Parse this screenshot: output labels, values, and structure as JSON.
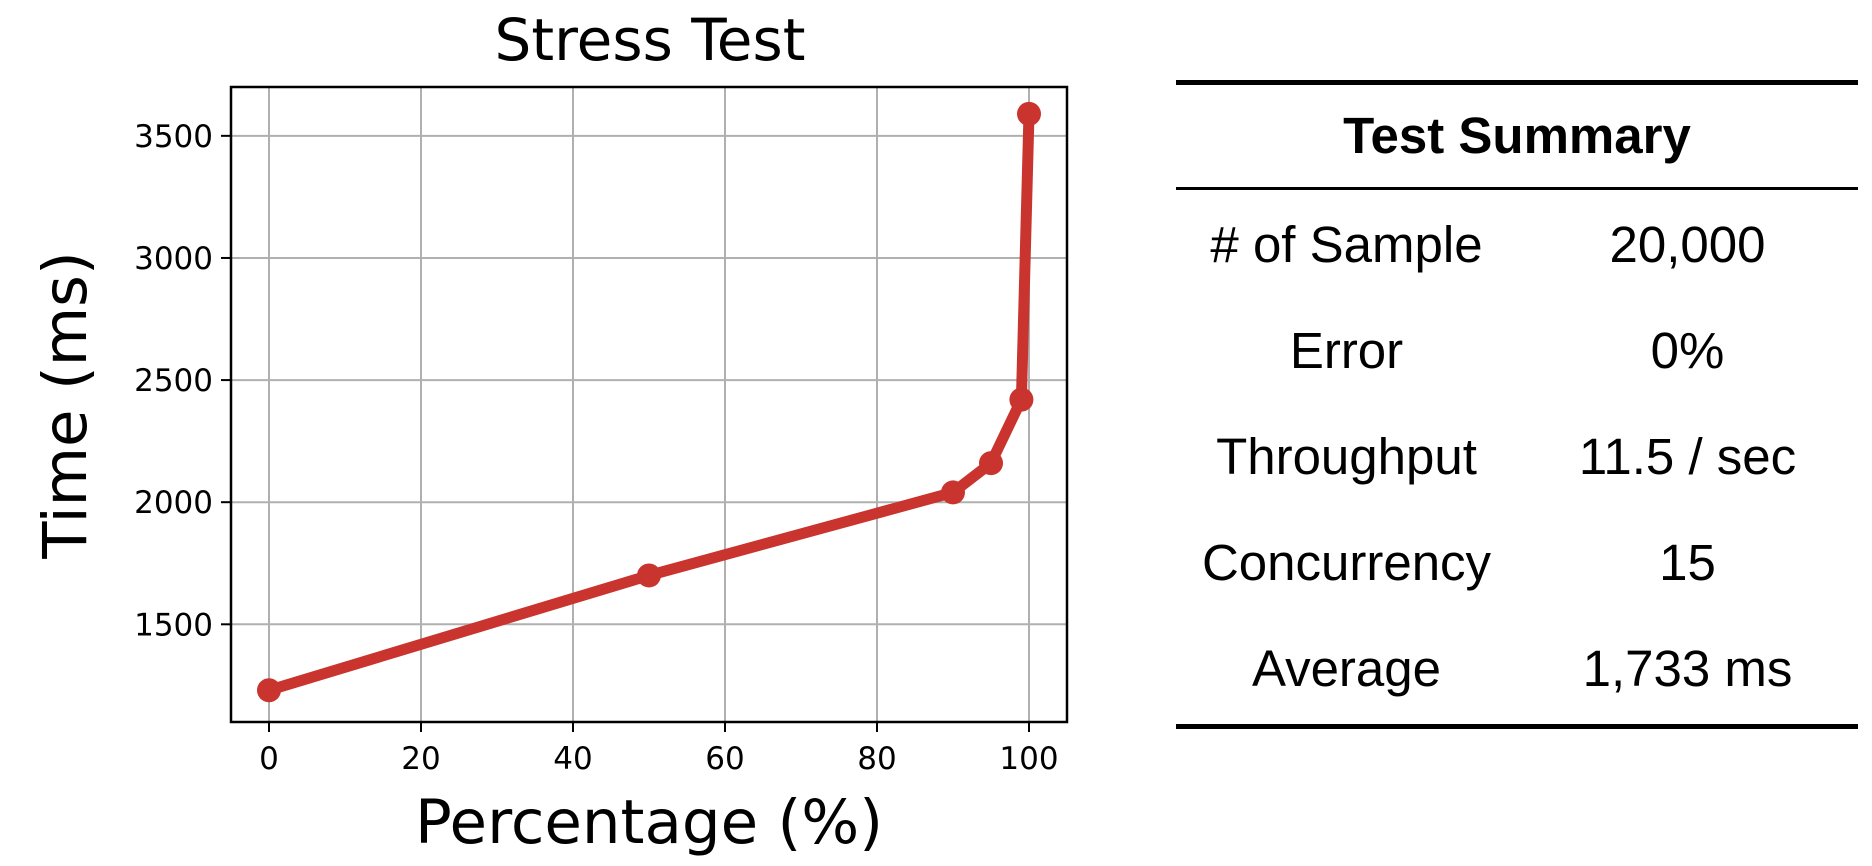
{
  "chart_data": {
    "type": "line",
    "title": "Stress Test",
    "xlabel": "Percentage (%)",
    "ylabel": "Time (ms)",
    "xlim": [
      -5,
      105
    ],
    "ylim": [
      1100,
      3700
    ],
    "xticks": [
      0,
      20,
      40,
      60,
      80,
      100
    ],
    "yticks": [
      1500,
      2000,
      2500,
      3000,
      3500
    ],
    "grid": true,
    "x": [
      0,
      50,
      90,
      95,
      99,
      100
    ],
    "series": [
      {
        "values": [
          1230,
          1700,
          2040,
          2160,
          2420,
          3590
        ],
        "color": "#c9342e"
      }
    ]
  },
  "summary": {
    "title": "Test Summary",
    "rows": [
      {
        "label": "# of Sample",
        "value": "20,000"
      },
      {
        "label": "Error",
        "value": "0%"
      },
      {
        "label": "Throughput",
        "value": "11.5 / sec"
      },
      {
        "label": "Concurrency",
        "value": "15"
      },
      {
        "label": "Average",
        "value": "1,733 ms"
      }
    ]
  }
}
